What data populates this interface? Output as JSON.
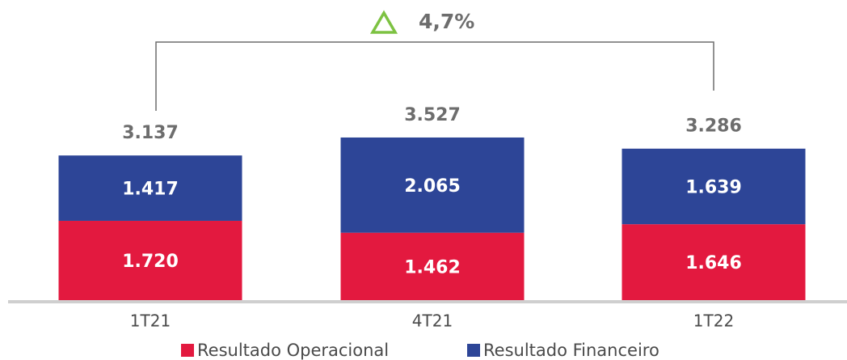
{
  "chart_data": {
    "type": "stacked-bar",
    "categories": [
      "1T21",
      "4T21",
      "1T22"
    ],
    "series": [
      {
        "name": "Resultado Operacional",
        "color": "#e3193f",
        "values": [
          1720,
          1462,
          1646
        ],
        "value_labels": [
          "1.720",
          "1.462",
          "1.646"
        ]
      },
      {
        "name": "Resultado Financeiro",
        "color": "#2d4597",
        "values": [
          1417,
          2065,
          1639
        ],
        "value_labels": [
          "1.417",
          "2.065",
          "1.639"
        ]
      }
    ],
    "totals": {
      "values": [
        3137,
        3527,
        3286
      ],
      "value_labels": [
        "3.137",
        "3.527",
        "3.286"
      ]
    },
    "annotation": {
      "text": "4,7%",
      "color": "#7dc242"
    },
    "ylim": [
      0,
      4000
    ]
  }
}
